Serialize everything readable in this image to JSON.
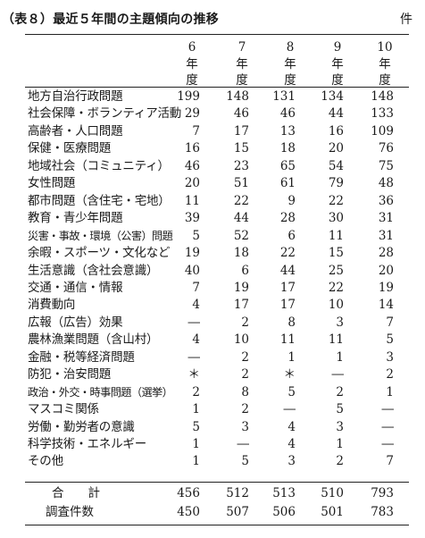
{
  "title": "（表８）最近５年間の主題傾向の推移",
  "unit": "件",
  "columns": [
    {
      "num": "6",
      "chars": [
        "年",
        "度"
      ]
    },
    {
      "num": "7",
      "chars": [
        "年",
        "度"
      ]
    },
    {
      "num": "8",
      "chars": [
        "年",
        "度"
      ]
    },
    {
      "num": "9",
      "chars": [
        "年",
        "度"
      ]
    },
    {
      "num": "10",
      "chars": [
        "年",
        "度"
      ]
    }
  ],
  "rows": [
    {
      "label": "地方自治行政問題",
      "values": [
        "199",
        "148",
        "131",
        "134",
        "148"
      ]
    },
    {
      "label": "社会保障・ボランティア活動",
      "values": [
        "29",
        "46",
        "46",
        "44",
        "133"
      ]
    },
    {
      "label": "高齢者・人口問題",
      "values": [
        "7",
        "17",
        "13",
        "16",
        "109"
      ]
    },
    {
      "label": "保健・医療問題",
      "values": [
        "16",
        "15",
        "18",
        "20",
        "76"
      ]
    },
    {
      "label": "地域社会（コミュニティ）",
      "values": [
        "46",
        "23",
        "65",
        "54",
        "75"
      ]
    },
    {
      "label": "女性問題",
      "values": [
        "20",
        "51",
        "61",
        "79",
        "48"
      ]
    },
    {
      "label": "都市問題（含住宅・宅地）",
      "values": [
        "11",
        "22",
        "9",
        "22",
        "36"
      ]
    },
    {
      "label": "教育・青少年問題",
      "values": [
        "39",
        "44",
        "28",
        "30",
        "31"
      ]
    },
    {
      "label": "災害・事故・環境（公害）問題",
      "values": [
        "5",
        "52",
        "6",
        "11",
        "31"
      ]
    },
    {
      "label": "余暇・スポーツ・文化など",
      "values": [
        "19",
        "18",
        "22",
        "15",
        "28"
      ]
    },
    {
      "label": "生活意識（含社会意識）",
      "values": [
        "40",
        "6",
        "44",
        "25",
        "20"
      ]
    },
    {
      "label": "交通・通信・情報",
      "values": [
        "7",
        "19",
        "17",
        "22",
        "19"
      ]
    },
    {
      "label": "消費動向",
      "values": [
        "4",
        "17",
        "17",
        "10",
        "14"
      ]
    },
    {
      "label": "広報（広告）効果",
      "values": [
        "―",
        "2",
        "8",
        "3",
        "7"
      ]
    },
    {
      "label": "農林漁業問題（含山村）",
      "values": [
        "4",
        "10",
        "11",
        "11",
        "5"
      ]
    },
    {
      "label": "金融・税等経済問題",
      "values": [
        "―",
        "2",
        "1",
        "1",
        "3"
      ]
    },
    {
      "label": "防犯・治安問題",
      "values": [
        "＊",
        "2",
        "＊",
        "―",
        "2"
      ]
    },
    {
      "label": "政治・外交・時事問題（選挙）",
      "values": [
        "2",
        "8",
        "5",
        "2",
        "1"
      ]
    },
    {
      "label": "マスコミ関係",
      "values": [
        "1",
        "2",
        "―",
        "5",
        "―"
      ]
    },
    {
      "label": "労働・勤労者の意識",
      "values": [
        "5",
        "3",
        "4",
        "3",
        "―"
      ]
    },
    {
      "label": "科学技術・エネルギー",
      "values": [
        "1",
        "―",
        "4",
        "1",
        "―"
      ]
    },
    {
      "label": "その他",
      "values": [
        "1",
        "5",
        "3",
        "2",
        "7"
      ]
    }
  ],
  "totals": {
    "label": "合　　計",
    "values": [
      "456",
      "512",
      "513",
      "510",
      "793"
    ]
  },
  "surveys": {
    "label": "調査件数",
    "values": [
      "450",
      "507",
      "506",
      "501",
      "783"
    ]
  }
}
